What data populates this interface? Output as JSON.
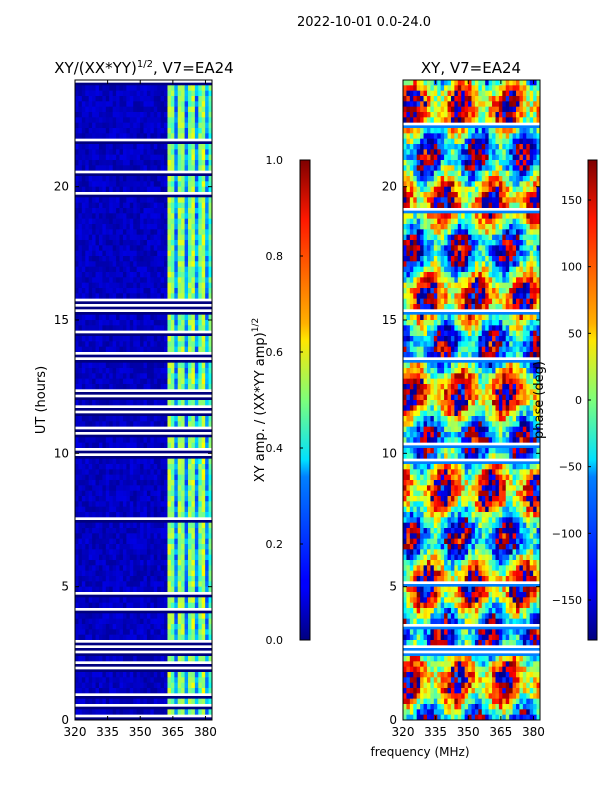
{
  "suptitle": "2022-10-01 0.0-24.0",
  "chart_data": [
    {
      "type": "heatmap",
      "title_base": "XY/(XX*YY)",
      "title_exp": "1/2",
      "title_suffix": ", V7=EA24",
      "xlabel": "",
      "ylabel": "UT (hours)",
      "xlim": [
        320,
        383
      ],
      "ylim": [
        0,
        24
      ],
      "xticks": [
        "320",
        "335",
        "350",
        "365",
        "380"
      ],
      "yticks": [
        "0",
        "5",
        "10",
        "15",
        "20"
      ],
      "background": "#00007f",
      "active_band_mhz": [
        362,
        383
      ],
      "colorbar": {
        "label": "XY amp. / (XX*YY amp)",
        "label_exp": "1/2",
        "min": 0.0,
        "max": 1.0,
        "ticks": [
          "0.0",
          "0.2",
          "0.4",
          "0.6",
          "0.8",
          "1.0"
        ]
      }
    },
    {
      "type": "heatmap",
      "title": "XY, V7=EA24",
      "xlabel": "frequency (MHz)",
      "ylabel": "",
      "xlim": [
        320,
        383
      ],
      "ylim": [
        0,
        24
      ],
      "xticks": [
        "320",
        "335",
        "350",
        "365",
        "380"
      ],
      "yticks": [
        "0",
        "5",
        "10",
        "15",
        "20"
      ],
      "colorbar": {
        "label": "phase (deg)",
        "min": -180,
        "max": 180,
        "ticks": [
          "−150",
          "−100",
          "−50",
          "0",
          "50",
          "100",
          "150"
        ]
      }
    }
  ]
}
